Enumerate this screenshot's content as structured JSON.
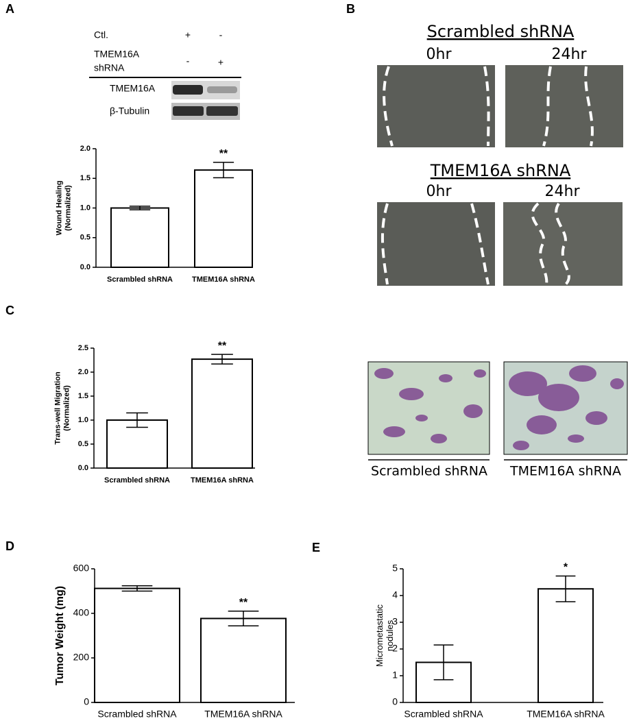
{
  "chart_data": [
    {
      "type": "bar",
      "panel": "A",
      "ylabel": [
        "Wound Healing",
        "(Normalized)"
      ],
      "categories": [
        "Scrambled shRNA",
        "TMEM16A shRNA"
      ],
      "values": [
        1.0,
        1.64
      ],
      "errors": [
        0.03,
        0.13
      ],
      "significance": [
        null,
        "**"
      ],
      "color": "#ffffff",
      "ylim": [
        0,
        2
      ],
      "yticks": [
        {
          "value": 0,
          "label": "0.0"
        },
        0.5,
        {
          "value": 1,
          "label": "1.0"
        },
        1.5,
        {
          "value": 2,
          "label": "2.0"
        }
      ]
    },
    {
      "type": "bar",
      "panel": "C",
      "ylabel": [
        "Trans-well Migration",
        "(Normalized)"
      ],
      "categories": [
        "Scrambled shRNA",
        "TMEM16A shRNA"
      ],
      "values": [
        1.0,
        2.27
      ],
      "errors": [
        0.15,
        0.1
      ],
      "significance": [
        null,
        "**"
      ],
      "color": "#ffffff",
      "ylim": [
        0,
        2.5
      ],
      "yticks": [
        {
          "value": 0,
          "label": "0.0"
        },
        0.5,
        {
          "value": 1,
          "label": "1.0"
        },
        1.5,
        {
          "value": 2,
          "label": "2.0"
        },
        2.5
      ]
    },
    {
      "type": "bar",
      "panel": "D",
      "ylabel": [
        "Tumor Weight (mg)"
      ],
      "categories": [
        "Scrambled shRNA",
        "TMEM16A shRNA"
      ],
      "values": [
        512,
        377
      ],
      "errors": [
        12,
        33
      ],
      "significance": [
        null,
        "**"
      ],
      "color": "#ffffff",
      "ylim": [
        0,
        600
      ],
      "yticks": [
        0,
        200,
        400,
        600
      ]
    },
    {
      "type": "bar",
      "panel": "E",
      "ylabel": [
        "Micrometastatic",
        "nodules"
      ],
      "categories": [
        "Scrambled shRNA",
        "TMEM16A shRNA"
      ],
      "values": [
        1.5,
        4.25
      ],
      "errors": [
        0.65,
        0.48
      ],
      "significance": [
        null,
        "*"
      ],
      "color": "#ffffff",
      "ylim": [
        0,
        5
      ],
      "yticks": [
        0,
        1,
        2,
        3,
        4,
        5
      ]
    }
  ],
  "blot": {
    "ctl": "Ctl.",
    "ctl_signs": [
      "+",
      "-"
    ],
    "shrna": [
      "TMEM16A",
      "shRNA"
    ],
    "shrna_signs": [
      "-",
      "+"
    ],
    "bands": [
      "TMEM16A",
      "β-Tubulin"
    ]
  },
  "wound_images": {
    "panel": "B",
    "groups": [
      {
        "title": "Scrambled shRNA",
        "times": [
          "0hr",
          "24hr"
        ]
      },
      {
        "title": "TMEM16A shRNA",
        "times": [
          "0hr",
          "24hr"
        ]
      }
    ]
  },
  "transwell_images": {
    "captions": [
      "Scrambled shRNA",
      "TMEM16A shRNA"
    ]
  }
}
